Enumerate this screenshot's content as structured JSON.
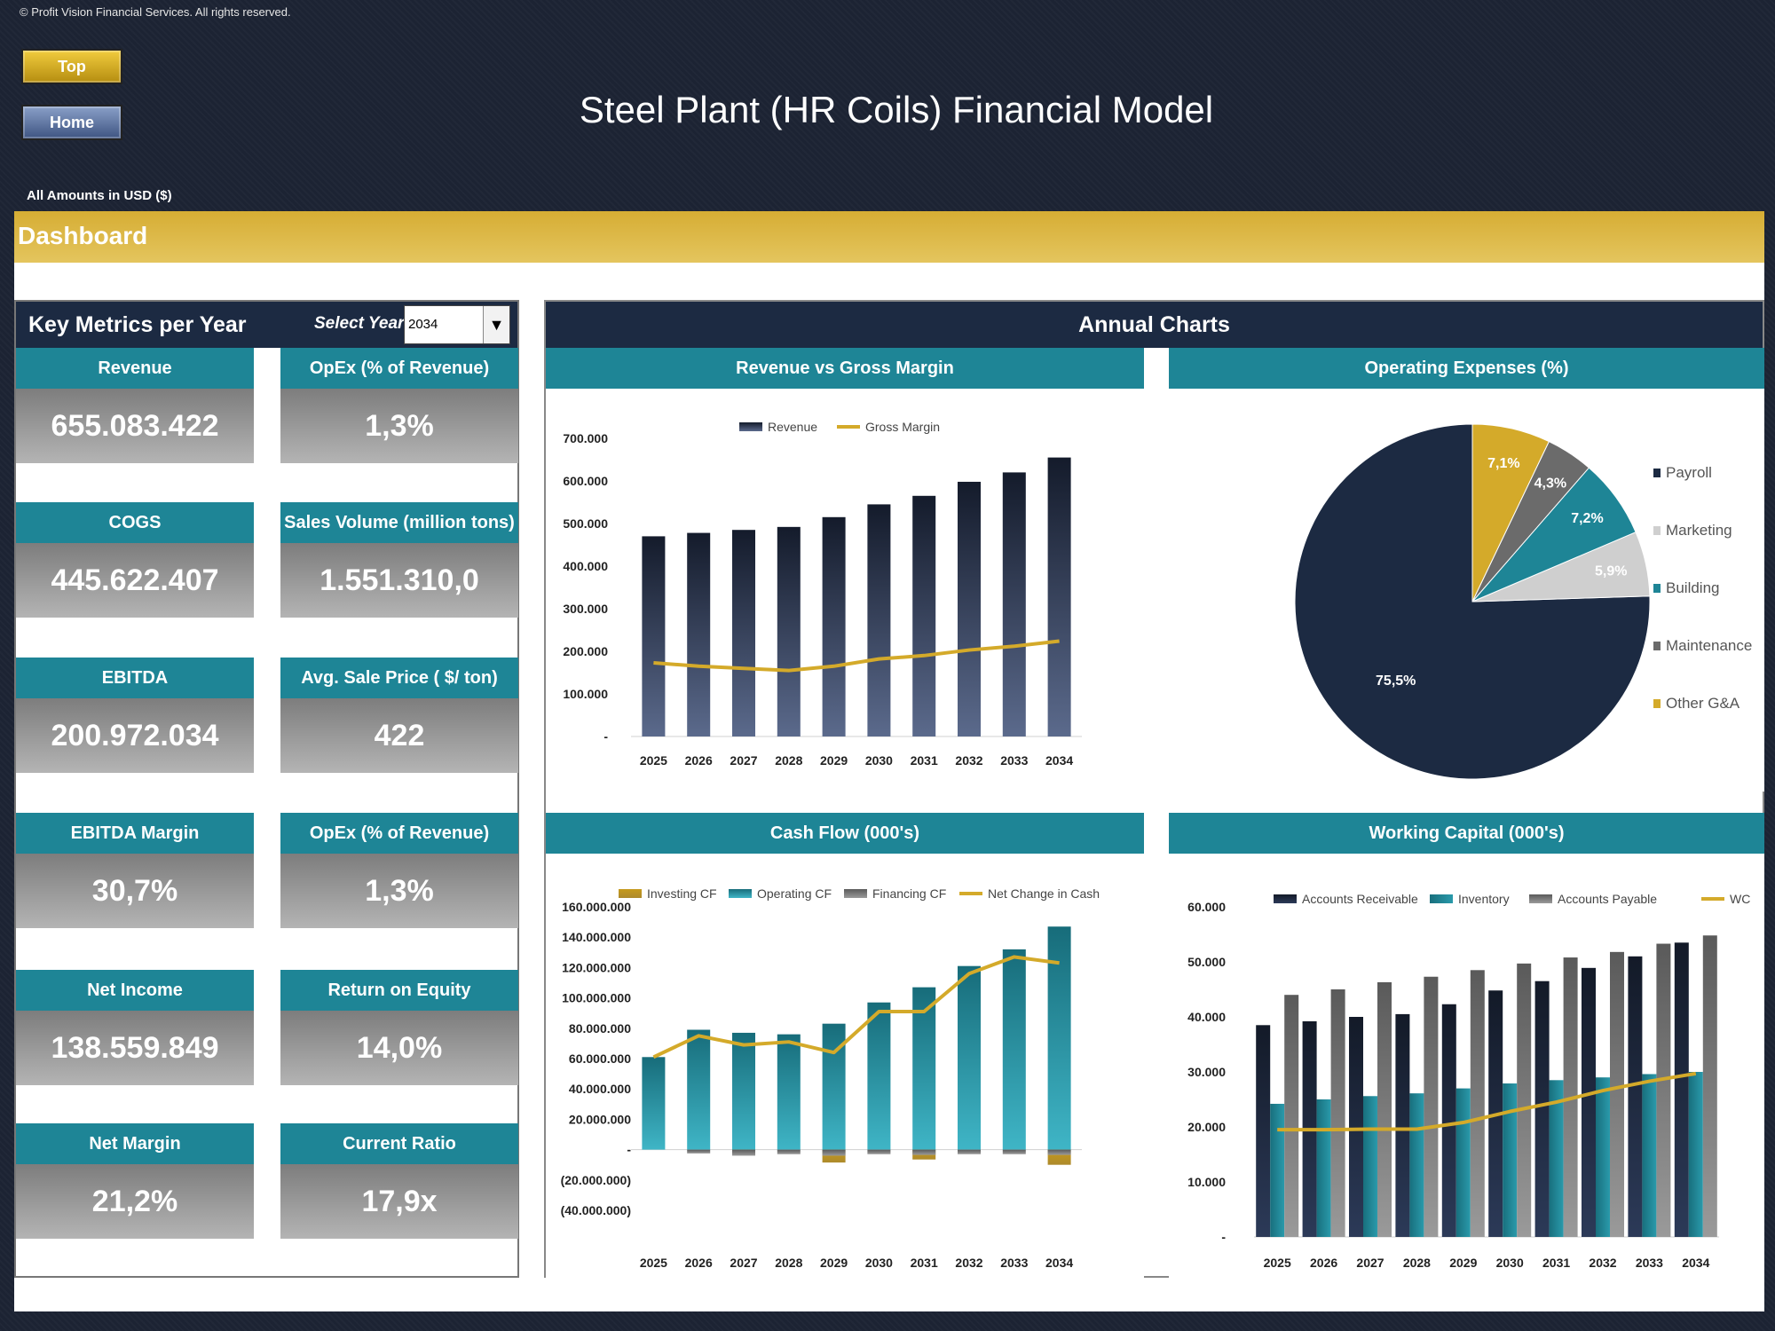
{
  "copyright": "© Profit Vision Financial Services. All rights reserved.",
  "nav": {
    "top_label": "Top",
    "home_label": "Home"
  },
  "title": "Steel Plant (HR Coils) Financial Model",
  "currency_note": "All Amounts in  USD ($)",
  "section_title": "Dashboard",
  "key_metrics": {
    "title": "Key Metrics per Year",
    "select_label": "Select Year",
    "selected_year": "2034",
    "cards": [
      {
        "label": "Revenue",
        "value": "655.083.422"
      },
      {
        "label": "OpEx (% of Revenue)",
        "value": "1,3%"
      },
      {
        "label": "COGS",
        "value": "445.622.407"
      },
      {
        "label": "Sales Volume (million tons)",
        "value": "1.551.310,0"
      },
      {
        "label": "EBITDA",
        "value": "200.972.034"
      },
      {
        "label": "Avg. Sale Price ( $/ ton)",
        "value": "422"
      },
      {
        "label": "EBITDA Margin",
        "value": "30,7%"
      },
      {
        "label": "OpEx (% of Revenue)",
        "value": "1,3%"
      },
      {
        "label": "Net Income",
        "value": "138.559.849"
      },
      {
        "label": "Return on Equity",
        "value": "14,0%"
      },
      {
        "label": "Net Margin",
        "value": "21,2%"
      },
      {
        "label": "Current Ratio",
        "value": "17,9x"
      }
    ]
  },
  "annual_charts_title": "Annual Charts",
  "colors": {
    "navy": "#1c2a42",
    "teal": "#1e8596",
    "gold": "#d4aa2a",
    "gray": "#7a7a7a",
    "light_gray": "#c8c8c8"
  },
  "chart_data": [
    {
      "id": "revenue_gm",
      "title": "Revenue vs Gross Margin",
      "type": "bar",
      "categories": [
        "2025",
        "2026",
        "2027",
        "2028",
        "2029",
        "2030",
        "2031",
        "2032",
        "2033",
        "2034"
      ],
      "series": [
        {
          "name": "Revenue",
          "type": "bar",
          "values": [
            470000,
            478000,
            485000,
            492000,
            515000,
            545000,
            565000,
            598000,
            620000,
            655000
          ]
        },
        {
          "name": "Gross Margin",
          "type": "line",
          "values": [
            173000,
            165000,
            160000,
            155000,
            165000,
            182000,
            190000,
            203000,
            212000,
            224000
          ]
        }
      ],
      "ylim": [
        0,
        700000
      ],
      "y_ticks": [
        "-",
        "100.000",
        "200.000",
        "300.000",
        "400.000",
        "500.000",
        "600.000",
        "700.000"
      ],
      "legend": "top"
    },
    {
      "id": "opex_pie",
      "title": "Operating Expenses (%)",
      "type": "pie",
      "categories": [
        "Payroll",
        "Marketing",
        "Building",
        "Maintenance",
        "Other G&A"
      ],
      "values": [
        75.5,
        5.9,
        7.2,
        4.3,
        7.1
      ],
      "labels": [
        "75,5%",
        "5,9%",
        "7,2%",
        "4,3%",
        "7,1%"
      ],
      "legend": "right"
    },
    {
      "id": "cash_flow",
      "title": "Cash Flow (000's)",
      "type": "bar",
      "categories": [
        "2025",
        "2026",
        "2027",
        "2028",
        "2029",
        "2030",
        "2031",
        "2032",
        "2033",
        "2034"
      ],
      "series": [
        {
          "name": "Investing CF",
          "type": "bar",
          "values": [
            0,
            0,
            -3500000,
            0,
            -8500000,
            0,
            -6500000,
            0,
            0,
            -10000000
          ]
        },
        {
          "name": "Operating CF",
          "type": "bar",
          "values": [
            61000000,
            79000000,
            77000000,
            76000000,
            83000000,
            97000000,
            107000000,
            121000000,
            132000000,
            147000000
          ]
        },
        {
          "name": "Financing CF",
          "type": "bar",
          "values": [
            0,
            -2500000,
            -4000000,
            -3000000,
            -4000000,
            -3000000,
            -3500000,
            -3000000,
            -3000000,
            -3500000
          ]
        },
        {
          "name": "Net Change in Cash",
          "type": "line",
          "values": [
            61000000,
            75000000,
            69000000,
            71000000,
            64000000,
            91000000,
            91000000,
            116000000,
            127000000,
            123000000
          ]
        }
      ],
      "ylim": [
        -40000000,
        160000000
      ],
      "y_ticks": [
        "(40.000.000)",
        "(20.000.000)",
        "-",
        "20.000.000",
        "40.000.000",
        "60.000.000",
        "80.000.000",
        "100.000.000",
        "120.000.000",
        "140.000.000",
        "160.000.000"
      ],
      "legend": "top"
    },
    {
      "id": "working_capital",
      "title": "Working Capital (000's)",
      "type": "bar",
      "categories": [
        "2025",
        "2026",
        "2027",
        "2028",
        "2029",
        "2030",
        "2031",
        "2032",
        "2033",
        "2034"
      ],
      "series": [
        {
          "name": "Accounts Receivable",
          "type": "bar",
          "values": [
            38500,
            39200,
            40000,
            40500,
            42300,
            44800,
            46500,
            48900,
            51000,
            53500
          ]
        },
        {
          "name": "Inventory",
          "type": "bar",
          "values": [
            24200,
            25000,
            25600,
            26100,
            27000,
            27900,
            28500,
            29000,
            29600,
            30000
          ]
        },
        {
          "name": "Accounts Payable",
          "type": "bar",
          "values": [
            44000,
            45000,
            46300,
            47300,
            48500,
            49700,
            50800,
            51800,
            53300,
            54800
          ]
        },
        {
          "name": "WC",
          "type": "line",
          "values": [
            19500,
            19500,
            19600,
            19600,
            20800,
            22800,
            24500,
            26600,
            28300,
            29700
          ]
        }
      ],
      "ylim": [
        0,
        60000
      ],
      "y_ticks": [
        "-",
        "10.000",
        "20.000",
        "30.000",
        "40.000",
        "50.000",
        "60.000"
      ],
      "legend": "top"
    }
  ]
}
